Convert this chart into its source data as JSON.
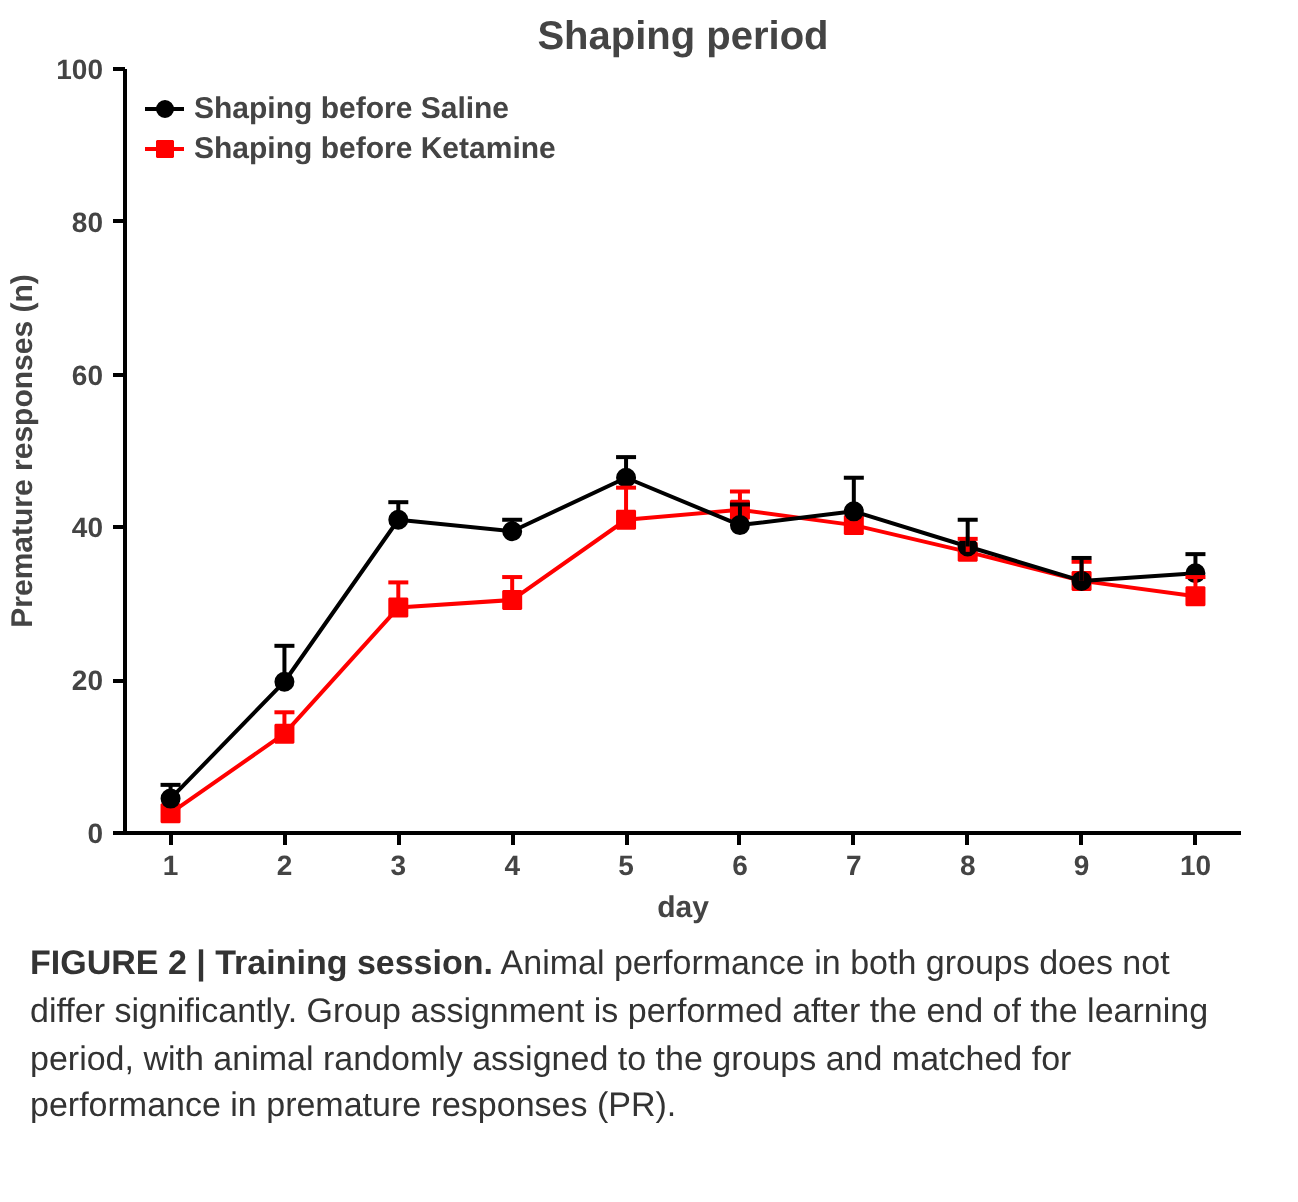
{
  "chart_data": {
    "type": "line",
    "title": "Shaping period",
    "xlabel": "day",
    "ylabel": "Premature responses (n)",
    "x": [
      1,
      2,
      3,
      4,
      5,
      6,
      7,
      8,
      9,
      10
    ],
    "series": [
      {
        "name": "Shaping before Saline",
        "color": "#000000",
        "marker": "circle",
        "values": [
          4.5,
          19.8,
          41,
          39.5,
          46.5,
          40.3,
          42.1,
          37.5,
          33,
          34
        ],
        "errors": [
          [
            4.5,
            6.3
          ],
          [
            19.8,
            24.5
          ],
          [
            41,
            43.3
          ],
          [
            39.5,
            41
          ],
          [
            46.5,
            49.2
          ],
          [
            40.3,
            43
          ],
          [
            42.1,
            46.5
          ],
          [
            37.5,
            41
          ],
          [
            33,
            36
          ],
          [
            34,
            36.5
          ]
        ]
      },
      {
        "name": "Shaping before Ketamine",
        "color": "#ff0000",
        "marker": "square",
        "values": [
          2.6,
          13,
          29.5,
          30.5,
          41,
          42.3,
          40.3,
          36.8,
          33,
          31
        ],
        "errors": [
          null,
          [
            13,
            15.8
          ],
          [
            29.5,
            32.8
          ],
          [
            30.5,
            33.5
          ],
          [
            41,
            45.2
          ],
          [
            42.3,
            44.7
          ],
          null,
          [
            36.8,
            38.5
          ],
          [
            33,
            35.5
          ],
          [
            31,
            33.5
          ]
        ]
      }
    ],
    "xlim": [
      0.6,
      10.4
    ],
    "xticks": [
      1,
      2,
      3,
      4,
      5,
      6,
      7,
      8,
      9,
      10
    ],
    "ylim": [
      0,
      100
    ],
    "yticks": [
      0,
      20,
      40,
      60,
      80,
      100
    ],
    "grid": false,
    "legend": "top left",
    "line_style": "solid",
    "annotations": [
      "FIGURE 2 | Training session. Animal performance in both groups does not differ significantly. Group assignment is performed after the end of the learning period, with animal randomly assigned to the groups and matched for performance in premature responses (PR)."
    ]
  }
}
